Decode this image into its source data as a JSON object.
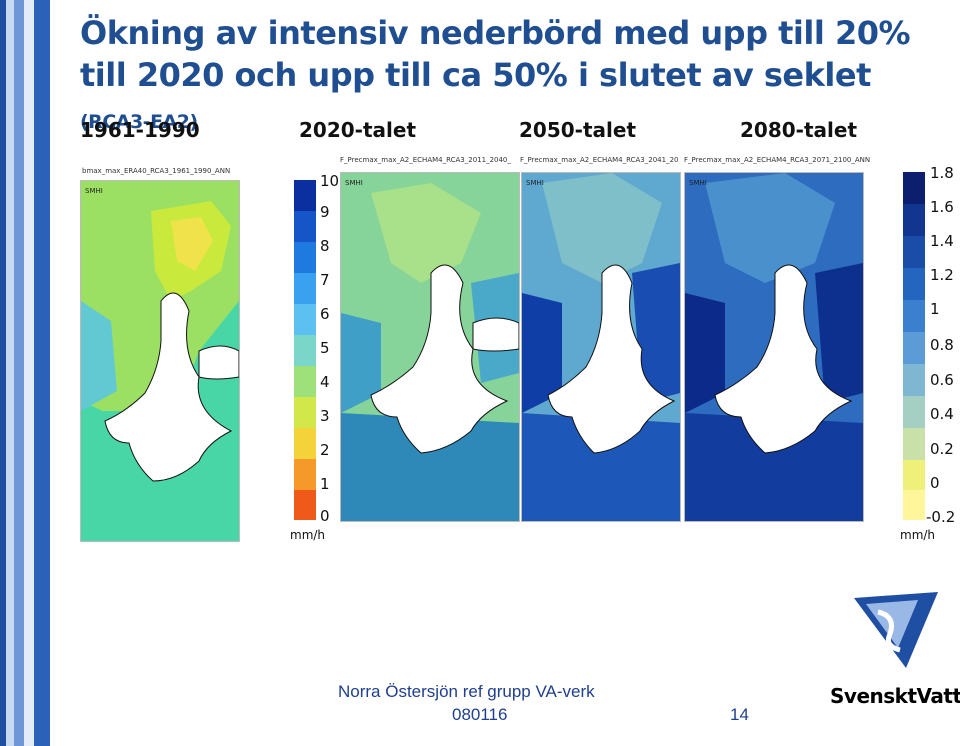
{
  "slide": {
    "title_main": "Ökning av intensiv nederbörd med upp till 20% till 2020 och upp till ca 50% i slutet av seklet",
    "title_tag": "(RCA3-EA2)",
    "periods": [
      "1961-1990",
      "2020-talet",
      "2050-talet",
      "2080-talet"
    ],
    "map_captions": [
      "bmax_max_ERA40_RCA3_1961_1990_ANN",
      "F_Precmax_max_A2_ECHAM4_RCA3_2011_2040_",
      "F_Precmax_max_A2_ECHAM4_RCA3_2041_20",
      "F_Precmax_max_A2_ECHAM4_RCA3_2071_2100_ANN"
    ],
    "left_colorbar": {
      "ticks": [
        "10",
        "9",
        "8",
        "7",
        "6",
        "5",
        "4",
        "3",
        "2",
        "1",
        "0"
      ],
      "unit": "mm/h",
      "colors": [
        "#0b2f9e",
        "#1555c8",
        "#1f7ae0",
        "#3aa0f0",
        "#5cc0f0",
        "#7ad6c8",
        "#9ee07a",
        "#d2e84a",
        "#f3d23a",
        "#f59a2a",
        "#ef5a1a"
      ]
    },
    "right_colorbar": {
      "ticks": [
        "1.8",
        "1.6",
        "1.4",
        "1.2",
        "1",
        "0.8",
        "0.6",
        "0.4",
        "0.2",
        "0",
        "-0.2"
      ],
      "unit": "mm/h",
      "colors": [
        "#0b1f6e",
        "#12358f",
        "#1a4da8",
        "#2466bf",
        "#3a80cf",
        "#5b9bd6",
        "#7fb6d2",
        "#a6cfc4",
        "#c9e0a8",
        "#eef07a",
        "#fff59a"
      ]
    },
    "footer": {
      "line1": "Norra Östersjön ref grupp VA-verk",
      "line2": "080116",
      "page_number": "14",
      "brand": "SvensktVatten"
    },
    "stripe_colors": [
      "#1f4fa3",
      "#8fb0e0",
      "#c9d9f2"
    ]
  }
}
